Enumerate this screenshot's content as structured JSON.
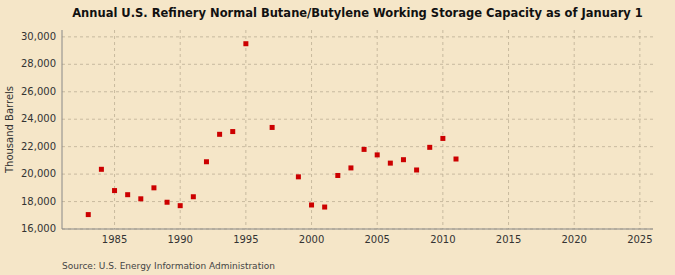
{
  "chart_data": {
    "type": "scatter",
    "title": "Annual U.S. Refinery Normal Butane/Butylene Working Storage Capacity as of January 1",
    "y_label": "Thousand Barrels",
    "annotations": [
      "Source: U.S. Energy Information Administration"
    ],
    "x": [
      1983,
      1984,
      1985,
      1986,
      1987,
      1988,
      1989,
      1990,
      1991,
      1992,
      1993,
      1994,
      1995,
      1997,
      1999,
      2000,
      2001,
      2002,
      2003,
      2004,
      2005,
      2006,
      2007,
      2008,
      2009,
      2010,
      2011
    ],
    "values": [
      17050,
      20350,
      18800,
      18500,
      18200,
      19000,
      17950,
      17700,
      18350,
      20900,
      22900,
      23100,
      29500,
      23400,
      19800,
      17750,
      17600,
      19900,
      20450,
      21800,
      21400,
      20800,
      21050,
      20300,
      21950,
      22600,
      21100
    ],
    "color": "#cc0000",
    "marker": "square",
    "xlim": [
      1981,
      2026
    ],
    "ylim": [
      16000,
      30500
    ],
    "xticks": [
      1985,
      1990,
      1995,
      2000,
      2005,
      2010,
      2015,
      2020,
      2025
    ],
    "yticks": [
      {
        "value": 16000,
        "label": "16,000"
      },
      {
        "value": 18000,
        "label": "18,000"
      },
      {
        "value": 20000,
        "label": "20,000"
      },
      {
        "value": 22000,
        "label": "22,000"
      },
      {
        "value": 24000,
        "label": "24,000"
      },
      {
        "value": 26000,
        "label": "26,000"
      },
      {
        "value": 28000,
        "label": "28,000"
      },
      {
        "value": 30000,
        "label": "30,000"
      }
    ],
    "grid": true
  }
}
